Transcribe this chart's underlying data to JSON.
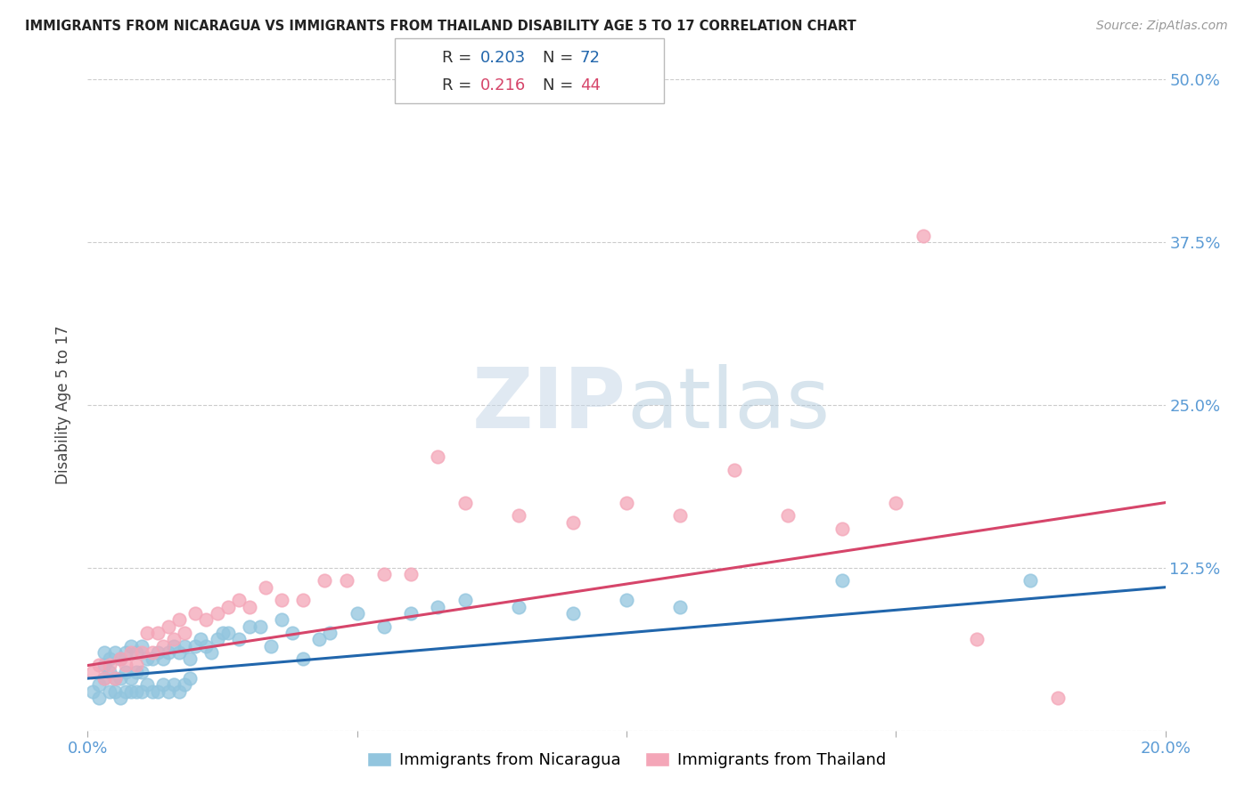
{
  "title": "IMMIGRANTS FROM NICARAGUA VS IMMIGRANTS FROM THAILAND DISABILITY AGE 5 TO 17 CORRELATION CHART",
  "source": "Source: ZipAtlas.com",
  "ylabel": "Disability Age 5 to 17",
  "xlim": [
    0.0,
    0.2
  ],
  "ylim": [
    0.0,
    0.5
  ],
  "xticks": [
    0.0,
    0.05,
    0.1,
    0.15,
    0.2
  ],
  "xticklabels": [
    "0.0%",
    "",
    "",
    "",
    "20.0%"
  ],
  "yticks": [
    0.0,
    0.125,
    0.25,
    0.375,
    0.5
  ],
  "yticklabels": [
    "",
    "12.5%",
    "25.0%",
    "37.5%",
    "50.0%"
  ],
  "legend_R1": "0.203",
  "legend_N1": "72",
  "legend_R2": "0.216",
  "legend_N2": "44",
  "blue_color": "#92c5de",
  "pink_color": "#f4a6b8",
  "trendline_blue": "#2166ac",
  "trendline_pink": "#d6456a",
  "axis_color": "#5b9bd5",
  "grid_color": "#cccccc",
  "title_color": "#222222",
  "nicaragua_x": [
    0.001,
    0.002,
    0.002,
    0.003,
    0.003,
    0.003,
    0.004,
    0.004,
    0.004,
    0.005,
    0.005,
    0.005,
    0.006,
    0.006,
    0.006,
    0.007,
    0.007,
    0.007,
    0.008,
    0.008,
    0.008,
    0.009,
    0.009,
    0.009,
    0.01,
    0.01,
    0.01,
    0.011,
    0.011,
    0.012,
    0.012,
    0.013,
    0.013,
    0.014,
    0.014,
    0.015,
    0.015,
    0.016,
    0.016,
    0.017,
    0.017,
    0.018,
    0.018,
    0.019,
    0.019,
    0.02,
    0.021,
    0.022,
    0.023,
    0.024,
    0.025,
    0.026,
    0.028,
    0.03,
    0.032,
    0.034,
    0.036,
    0.038,
    0.04,
    0.043,
    0.045,
    0.05,
    0.055,
    0.06,
    0.065,
    0.07,
    0.08,
    0.09,
    0.1,
    0.11,
    0.14,
    0.175
  ],
  "nicaragua_y": [
    0.03,
    0.025,
    0.035,
    0.04,
    0.05,
    0.06,
    0.03,
    0.045,
    0.055,
    0.03,
    0.04,
    0.06,
    0.025,
    0.04,
    0.055,
    0.03,
    0.045,
    0.06,
    0.03,
    0.04,
    0.065,
    0.03,
    0.045,
    0.06,
    0.03,
    0.045,
    0.065,
    0.035,
    0.055,
    0.03,
    0.055,
    0.03,
    0.06,
    0.035,
    0.055,
    0.03,
    0.06,
    0.035,
    0.065,
    0.03,
    0.06,
    0.035,
    0.065,
    0.04,
    0.055,
    0.065,
    0.07,
    0.065,
    0.06,
    0.07,
    0.075,
    0.075,
    0.07,
    0.08,
    0.08,
    0.065,
    0.085,
    0.075,
    0.055,
    0.07,
    0.075,
    0.09,
    0.08,
    0.09,
    0.095,
    0.1,
    0.095,
    0.09,
    0.1,
    0.095,
    0.115,
    0.115
  ],
  "thailand_x": [
    0.001,
    0.002,
    0.003,
    0.004,
    0.005,
    0.006,
    0.007,
    0.008,
    0.009,
    0.01,
    0.011,
    0.012,
    0.013,
    0.014,
    0.015,
    0.016,
    0.017,
    0.018,
    0.02,
    0.022,
    0.024,
    0.026,
    0.028,
    0.03,
    0.033,
    0.036,
    0.04,
    0.044,
    0.048,
    0.055,
    0.06,
    0.065,
    0.07,
    0.08,
    0.09,
    0.1,
    0.11,
    0.12,
    0.13,
    0.14,
    0.15,
    0.155,
    0.165,
    0.18
  ],
  "thailand_y": [
    0.045,
    0.05,
    0.04,
    0.05,
    0.04,
    0.055,
    0.05,
    0.06,
    0.05,
    0.06,
    0.075,
    0.06,
    0.075,
    0.065,
    0.08,
    0.07,
    0.085,
    0.075,
    0.09,
    0.085,
    0.09,
    0.095,
    0.1,
    0.095,
    0.11,
    0.1,
    0.1,
    0.115,
    0.115,
    0.12,
    0.12,
    0.21,
    0.175,
    0.165,
    0.16,
    0.175,
    0.165,
    0.2,
    0.165,
    0.155,
    0.175,
    0.38,
    0.07,
    0.025
  ],
  "trendline_blue_start": 0.04,
  "trendline_blue_end": 0.11,
  "trendline_pink_start": 0.05,
  "trendline_pink_end": 0.175
}
